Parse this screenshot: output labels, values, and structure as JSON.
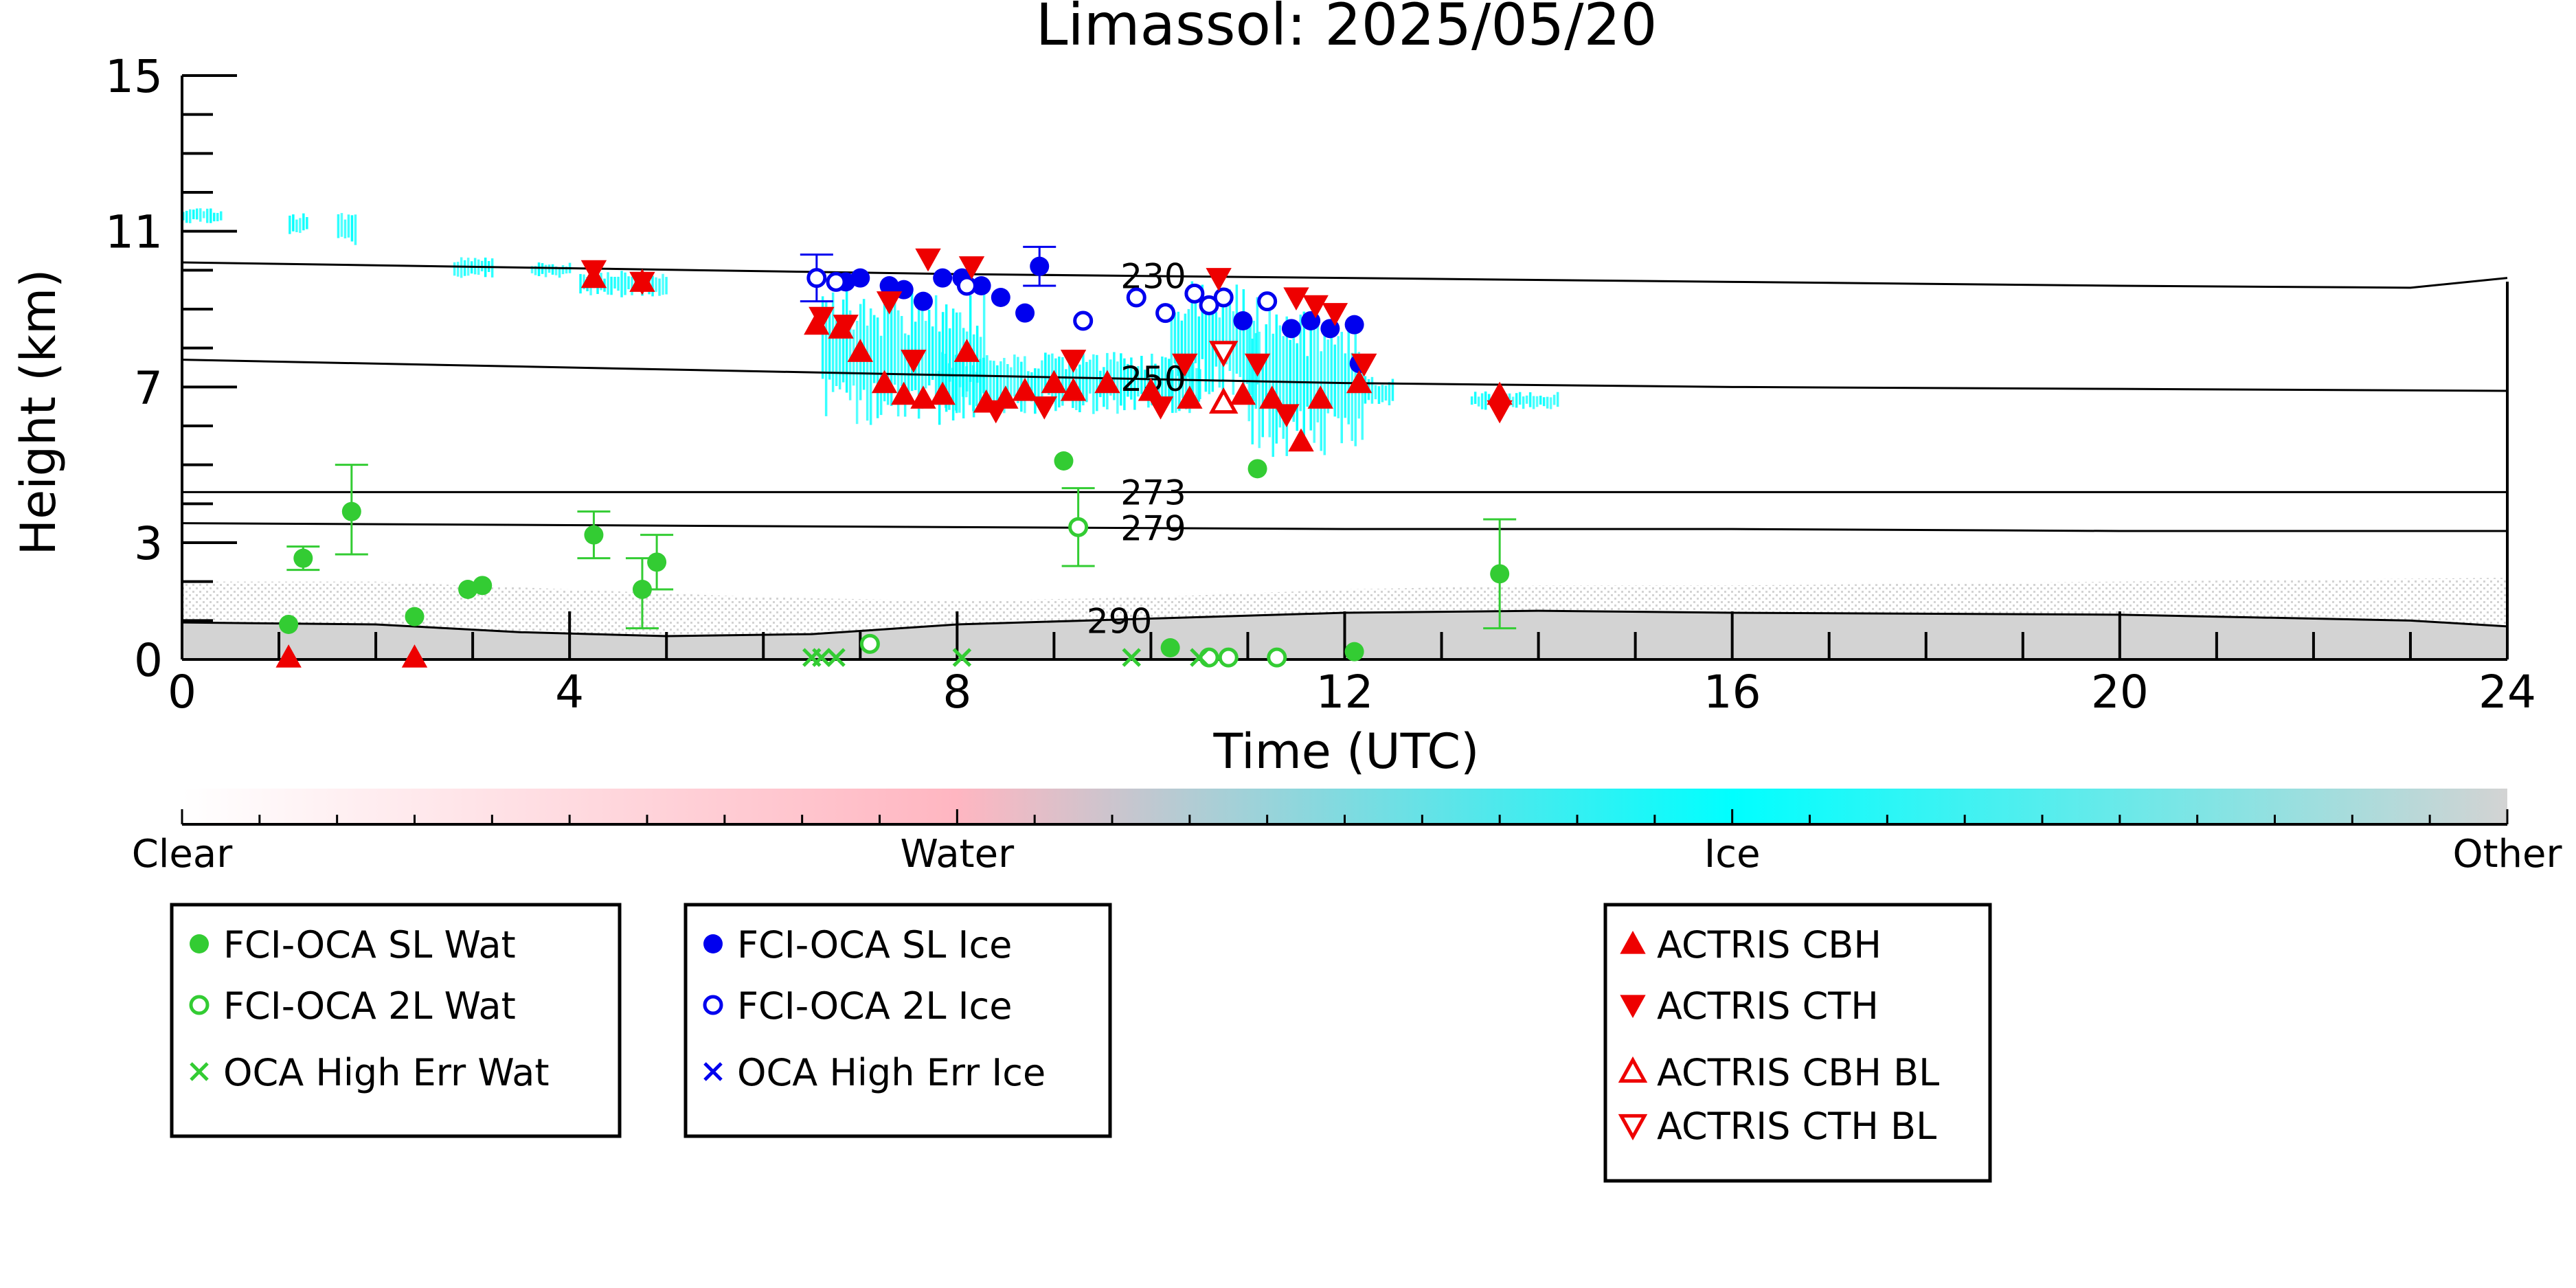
{
  "chart_data": {
    "type": "scatter",
    "title": "Limassol: 2025/05/20",
    "xlabel": "Time (UTC)",
    "ylabel": "Height (km)",
    "xlim": [
      0,
      24
    ],
    "ylim": [
      0,
      15
    ],
    "x_ticks": [
      0,
      4,
      8,
      12,
      16,
      20,
      24
    ],
    "y_ticks": [
      0,
      3,
      7,
      11,
      15
    ],
    "grid": false,
    "colorbar": {
      "labels": [
        "Clear",
        "Water",
        "Ice",
        "Other"
      ],
      "colors": [
        "#ffffff",
        "#ffb6c1",
        "#00ffff",
        "#d3d3d3"
      ]
    },
    "isotherms": [
      {
        "label": "230",
        "label_x": 9.6,
        "points": [
          [
            0,
            10.2
          ],
          [
            4,
            10.05
          ],
          [
            8,
            9.9
          ],
          [
            12,
            9.8
          ],
          [
            16,
            9.7
          ],
          [
            20,
            9.6
          ],
          [
            23,
            9.55
          ],
          [
            24,
            9.8
          ]
        ]
      },
      {
        "label": "250",
        "label_x": 9.6,
        "points": [
          [
            0,
            7.7
          ],
          [
            4,
            7.5
          ],
          [
            8,
            7.3
          ],
          [
            12,
            7.1
          ],
          [
            16,
            7.0
          ],
          [
            20,
            6.95
          ],
          [
            24,
            6.9
          ]
        ]
      },
      {
        "label": "273",
        "label_x": 9.6,
        "points": [
          [
            0,
            4.3
          ],
          [
            8,
            4.3
          ],
          [
            12,
            4.3
          ],
          [
            16,
            4.3
          ],
          [
            20,
            4.3
          ],
          [
            24,
            4.3
          ]
        ]
      },
      {
        "label": "279",
        "label_x": 9.6,
        "points": [
          [
            0,
            3.5
          ],
          [
            4,
            3.45
          ],
          [
            8,
            3.4
          ],
          [
            12,
            3.35
          ],
          [
            16,
            3.35
          ],
          [
            20,
            3.3
          ],
          [
            24,
            3.3
          ]
        ]
      },
      {
        "label": "290",
        "label_x": 9.25,
        "points": [
          [
            0,
            0.95
          ],
          [
            2,
            0.9
          ],
          [
            3.5,
            0.7
          ],
          [
            5,
            0.6
          ],
          [
            6.5,
            0.65
          ],
          [
            8,
            0.9
          ],
          [
            10,
            1.05
          ],
          [
            12,
            1.2
          ],
          [
            14,
            1.25
          ],
          [
            16,
            1.2
          ],
          [
            20,
            1.15
          ],
          [
            23,
            1.0
          ],
          [
            24,
            0.85
          ]
        ]
      }
    ],
    "cloud_regions": [
      {
        "class": "ice",
        "x": [
          0.0,
          0.4
        ],
        "y": [
          11.2,
          11.6
        ]
      },
      {
        "class": "ice",
        "x": [
          1.1,
          1.3
        ],
        "y": [
          10.9,
          11.5
        ]
      },
      {
        "class": "ice",
        "x": [
          1.6,
          1.8
        ],
        "y": [
          10.6,
          11.5
        ]
      },
      {
        "class": "ice",
        "x": [
          2.8,
          3.2
        ],
        "y": [
          9.8,
          10.4
        ]
      },
      {
        "class": "ice",
        "x": [
          3.6,
          4.0
        ],
        "y": [
          9.8,
          10.2
        ]
      },
      {
        "class": "ice",
        "x": [
          4.1,
          5.0
        ],
        "y": [
          9.3,
          10.0
        ]
      },
      {
        "class": "ice",
        "x": [
          6.6,
          8.3
        ],
        "y": [
          6.0,
          9.5
        ]
      },
      {
        "class": "ice",
        "x": [
          7.8,
          10.5
        ],
        "y": [
          6.3,
          7.9
        ]
      },
      {
        "class": "ice",
        "x": [
          10.2,
          11.1
        ],
        "y": [
          6.6,
          9.8
        ]
      },
      {
        "class": "ice",
        "x": [
          11.0,
          12.2
        ],
        "y": [
          5.2,
          9.0
        ]
      },
      {
        "class": "ice",
        "x": [
          12.2,
          12.5
        ],
        "y": [
          6.5,
          7.3
        ]
      },
      {
        "class": "ice",
        "x": [
          13.3,
          14.2
        ],
        "y": [
          6.4,
          6.9
        ]
      }
    ],
    "background_regions": [
      {
        "class": "other",
        "points": [
          [
            0,
            0.95
          ],
          [
            2,
            0.9
          ],
          [
            3.5,
            0.7
          ],
          [
            5,
            0.6
          ],
          [
            6.5,
            0.65
          ],
          [
            8,
            0.9
          ],
          [
            10,
            1.05
          ],
          [
            12,
            1.2
          ],
          [
            14,
            1.25
          ],
          [
            16,
            1.2
          ],
          [
            20,
            1.15
          ],
          [
            23,
            1.0
          ],
          [
            24,
            0.85
          ],
          [
            24,
            0
          ],
          [
            0,
            0
          ]
        ]
      },
      {
        "class": "other_sparse",
        "points": [
          [
            0,
            2.0
          ],
          [
            2,
            2.0
          ],
          [
            4,
            1.8
          ],
          [
            6,
            1.6
          ],
          [
            8,
            1.5
          ],
          [
            10,
            1.6
          ],
          [
            12,
            1.8
          ],
          [
            14,
            1.9
          ],
          [
            16,
            1.9
          ],
          [
            20,
            2.0
          ],
          [
            24,
            2.1
          ],
          [
            24,
            0.85
          ],
          [
            23,
            1.0
          ],
          [
            20,
            1.15
          ],
          [
            16,
            1.2
          ],
          [
            14,
            1.25
          ],
          [
            12,
            1.2
          ],
          [
            10,
            1.05
          ],
          [
            8,
            0.9
          ],
          [
            6.5,
            0.65
          ],
          [
            5,
            0.6
          ],
          [
            3.5,
            0.7
          ],
          [
            2,
            0.9
          ],
          [
            0,
            0.95
          ]
        ]
      }
    ],
    "series": [
      {
        "name": "FCI-OCA SL Wat",
        "marker": "filled-circle",
        "color": "#33cc33",
        "points": [
          {
            "x": 1.1,
            "y": 0.9
          },
          {
            "x": 1.25,
            "y": 2.6,
            "err": [
              2.3,
              2.9
            ]
          },
          {
            "x": 1.75,
            "y": 3.8,
            "err": [
              2.7,
              5.0
            ]
          },
          {
            "x": 2.4,
            "y": 1.1
          },
          {
            "x": 2.95,
            "y": 1.8
          },
          {
            "x": 3.1,
            "y": 1.9
          },
          {
            "x": 4.25,
            "y": 3.2,
            "err": [
              2.6,
              3.8
            ]
          },
          {
            "x": 4.75,
            "y": 1.8,
            "err": [
              0.8,
              2.6
            ]
          },
          {
            "x": 4.9,
            "y": 2.5,
            "err": [
              1.8,
              3.2
            ]
          },
          {
            "x": 9.1,
            "y": 5.1
          },
          {
            "x": 10.2,
            "y": 0.3
          },
          {
            "x": 11.1,
            "y": 4.9
          },
          {
            "x": 12.1,
            "y": 0.2
          },
          {
            "x": 13.6,
            "y": 2.2,
            "err": [
              0.8,
              3.6
            ]
          }
        ]
      },
      {
        "name": "FCI-OCA 2L Wat",
        "marker": "open-circle",
        "color": "#33cc33",
        "points": [
          {
            "x": 9.25,
            "y": 3.4,
            "err": [
              2.4,
              4.4
            ]
          },
          {
            "x": 7.1,
            "y": 0.4
          },
          {
            "x": 10.6,
            "y": 0.05
          },
          {
            "x": 10.8,
            "y": 0.05
          },
          {
            "x": 11.3,
            "y": 0.05
          }
        ]
      },
      {
        "name": "OCA High Err Wat",
        "marker": "cross",
        "color": "#33cc33",
        "points": [
          {
            "x": 6.5,
            "y": 0.05
          },
          {
            "x": 6.6,
            "y": 0.05
          },
          {
            "x": 6.75,
            "y": 0.05
          },
          {
            "x": 8.05,
            "y": 0.05
          },
          {
            "x": 9.8,
            "y": 0.05
          },
          {
            "x": 10.5,
            "y": 0.05
          }
        ]
      },
      {
        "name": "FCI-OCA SL Ice",
        "marker": "filled-circle",
        "color": "#0000ee",
        "points": [
          {
            "x": 6.85,
            "y": 9.7
          },
          {
            "x": 7.0,
            "y": 9.8
          },
          {
            "x": 7.3,
            "y": 9.6
          },
          {
            "x": 7.45,
            "y": 9.5
          },
          {
            "x": 7.65,
            "y": 9.2
          },
          {
            "x": 7.85,
            "y": 9.8
          },
          {
            "x": 8.05,
            "y": 9.8
          },
          {
            "x": 8.25,
            "y": 9.6
          },
          {
            "x": 8.45,
            "y": 9.3
          },
          {
            "x": 8.7,
            "y": 8.9
          },
          {
            "x": 8.85,
            "y": 10.1,
            "err": [
              9.6,
              10.6
            ]
          },
          {
            "x": 10.95,
            "y": 8.7
          },
          {
            "x": 11.45,
            "y": 8.5
          },
          {
            "x": 11.65,
            "y": 8.7
          },
          {
            "x": 11.85,
            "y": 8.5
          },
          {
            "x": 12.1,
            "y": 8.6
          },
          {
            "x": 12.15,
            "y": 7.6
          }
        ]
      },
      {
        "name": "FCI-OCA 2L Ice",
        "marker": "open-circle",
        "color": "#0000ee",
        "points": [
          {
            "x": 6.55,
            "y": 9.8,
            "err": [
              9.2,
              10.4
            ]
          },
          {
            "x": 6.75,
            "y": 9.7
          },
          {
            "x": 8.1,
            "y": 9.6
          },
          {
            "x": 9.3,
            "y": 8.7
          },
          {
            "x": 9.85,
            "y": 9.3
          },
          {
            "x": 10.15,
            "y": 8.9
          },
          {
            "x": 10.45,
            "y": 9.4
          },
          {
            "x": 10.6,
            "y": 9.1
          },
          {
            "x": 10.75,
            "y": 9.3
          },
          {
            "x": 11.2,
            "y": 9.2
          }
        ]
      },
      {
        "name": "OCA High Err Ice",
        "marker": "cross",
        "color": "#0000ee",
        "points": []
      },
      {
        "name": "ACTRIS CBH",
        "marker": "filled-triangle-up",
        "color": "#ee0000",
        "points": [
          {
            "x": 4.25,
            "y": 9.8
          },
          {
            "x": 4.75,
            "y": 9.7
          },
          {
            "x": 6.55,
            "y": 8.6
          },
          {
            "x": 6.8,
            "y": 8.5
          },
          {
            "x": 7.0,
            "y": 7.9
          },
          {
            "x": 7.25,
            "y": 7.1
          },
          {
            "x": 7.45,
            "y": 6.8
          },
          {
            "x": 7.65,
            "y": 6.7
          },
          {
            "x": 7.85,
            "y": 6.8
          },
          {
            "x": 8.1,
            "y": 7.9
          },
          {
            "x": 8.3,
            "y": 6.6
          },
          {
            "x": 8.5,
            "y": 6.7
          },
          {
            "x": 8.7,
            "y": 6.9
          },
          {
            "x": 9.0,
            "y": 7.1
          },
          {
            "x": 9.2,
            "y": 6.9
          },
          {
            "x": 9.55,
            "y": 7.1
          },
          {
            "x": 10.0,
            "y": 6.9
          },
          {
            "x": 10.4,
            "y": 6.7
          },
          {
            "x": 10.95,
            "y": 6.8
          },
          {
            "x": 11.25,
            "y": 6.7
          },
          {
            "x": 11.55,
            "y": 5.6
          },
          {
            "x": 11.75,
            "y": 6.7
          },
          {
            "x": 12.15,
            "y": 7.1
          },
          {
            "x": 13.6,
            "y": 6.8
          },
          {
            "x": 1.1,
            "y": 0.05
          },
          {
            "x": 2.4,
            "y": 0.05
          }
        ]
      },
      {
        "name": "ACTRIS CTH",
        "marker": "filled-triangle-down",
        "color": "#ee0000",
        "points": [
          {
            "x": 4.25,
            "y": 10.0
          },
          {
            "x": 4.75,
            "y": 9.7
          },
          {
            "x": 6.6,
            "y": 8.8
          },
          {
            "x": 6.85,
            "y": 8.6
          },
          {
            "x": 7.3,
            "y": 9.2
          },
          {
            "x": 7.55,
            "y": 7.7
          },
          {
            "x": 7.7,
            "y": 10.3
          },
          {
            "x": 8.15,
            "y": 10.1
          },
          {
            "x": 8.4,
            "y": 6.4
          },
          {
            "x": 8.9,
            "y": 6.5
          },
          {
            "x": 9.2,
            "y": 7.7
          },
          {
            "x": 10.1,
            "y": 6.5
          },
          {
            "x": 10.35,
            "y": 7.6
          },
          {
            "x": 10.7,
            "y": 9.8
          },
          {
            "x": 11.1,
            "y": 7.6
          },
          {
            "x": 11.4,
            "y": 6.3
          },
          {
            "x": 11.5,
            "y": 9.3
          },
          {
            "x": 11.7,
            "y": 9.1
          },
          {
            "x": 11.9,
            "y": 8.9
          },
          {
            "x": 12.2,
            "y": 7.6
          },
          {
            "x": 13.6,
            "y": 6.4
          }
        ]
      },
      {
        "name": "ACTRIS CBH BL",
        "marker": "open-triangle-up",
        "color": "#ee0000",
        "points": [
          {
            "x": 10.75,
            "y": 6.6
          }
        ]
      },
      {
        "name": "ACTRIS CTH BL",
        "marker": "open-triangle-down",
        "color": "#ee0000",
        "points": [
          {
            "x": 10.75,
            "y": 7.9
          }
        ]
      }
    ],
    "legend_groups": [
      [
        "FCI-OCA SL Wat",
        "FCI-OCA 2L Wat",
        "OCA High Err Wat"
      ],
      [
        "FCI-OCA SL Ice",
        "FCI-OCA 2L Ice",
        "OCA High Err Ice"
      ],
      [
        "ACTRIS CBH",
        "ACTRIS CTH",
        "ACTRIS CBH BL",
        "ACTRIS CTH BL"
      ]
    ],
    "legend_placement": "bottom"
  }
}
